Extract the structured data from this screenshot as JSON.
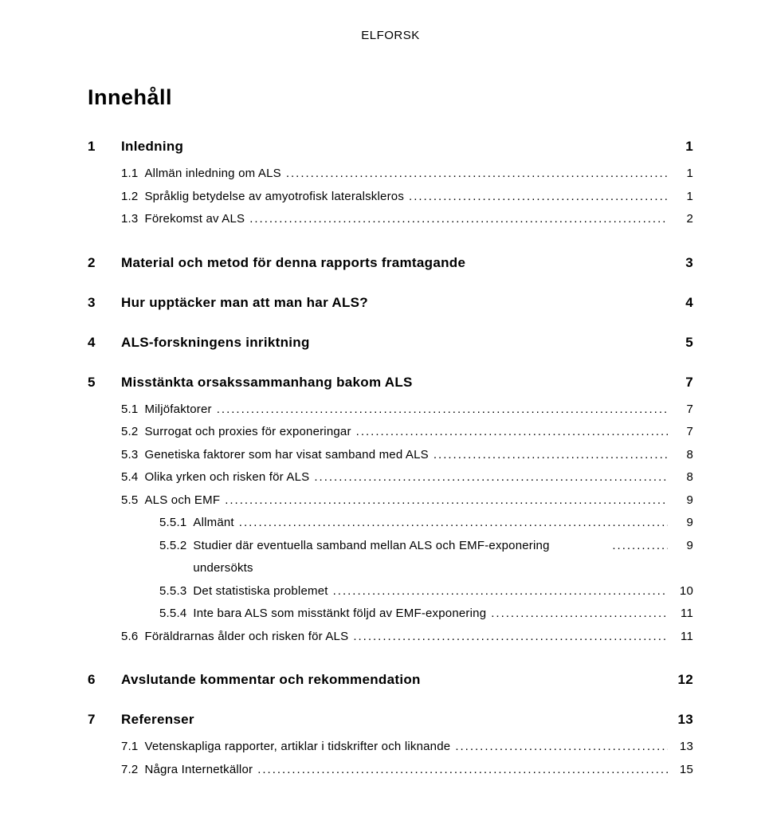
{
  "running_head": "ELFORSK",
  "title": "Innehåll",
  "chapters": [
    {
      "num": "1",
      "title": "Inledning",
      "page": "1",
      "entries": [
        {
          "level": 1,
          "num": "1.1",
          "title": "Allmän inledning om ALS",
          "page": "1"
        },
        {
          "level": 1,
          "num": "1.2",
          "title": "Språklig betydelse av amyotrofisk lateralskleros",
          "page": "1"
        },
        {
          "level": 1,
          "num": "1.3",
          "title": "Förekomst av ALS",
          "page": "2"
        }
      ]
    },
    {
      "num": "2",
      "title": "Material och metod för denna rapports framtagande",
      "page": "3",
      "entries": []
    },
    {
      "num": "3",
      "title": "Hur upptäcker man att man har ALS?",
      "page": "4",
      "entries": []
    },
    {
      "num": "4",
      "title": "ALS-forskningens inriktning",
      "page": "5",
      "entries": []
    },
    {
      "num": "5",
      "title": "Misstänkta orsakssammanhang bakom ALS",
      "page": "7",
      "entries": [
        {
          "level": 1,
          "num": "5.1",
          "title": "Miljöfaktorer",
          "page": "7"
        },
        {
          "level": 1,
          "num": "5.2",
          "title": "Surrogat och proxies för exponeringar",
          "page": "7"
        },
        {
          "level": 1,
          "num": "5.3",
          "title": "Genetiska faktorer som har visat samband med ALS",
          "page": "8"
        },
        {
          "level": 1,
          "num": "5.4",
          "title": "Olika yrken och risken för ALS",
          "page": "8"
        },
        {
          "level": 1,
          "num": "5.5",
          "title": "ALS och EMF",
          "page": "9"
        },
        {
          "level": 2,
          "num": "5.5.1",
          "title": "Allmänt",
          "page": "9"
        },
        {
          "level": 2,
          "num": "5.5.2",
          "title": "Studier där eventuella samband mellan ALS och EMF-exponering undersökts",
          "page": "9",
          "wrap": true
        },
        {
          "level": 2,
          "num": "5.5.3",
          "title": "Det statistiska problemet",
          "page": "10"
        },
        {
          "level": 2,
          "num": "5.5.4",
          "title": "Inte bara ALS som misstänkt följd av EMF-exponering",
          "page": "11"
        },
        {
          "level": 1,
          "num": "5.6",
          "title": "Föräldrarnas ålder och risken för ALS",
          "page": "11"
        }
      ]
    },
    {
      "num": "6",
      "title": "Avslutande kommentar och rekommendation",
      "page": "12",
      "entries": []
    },
    {
      "num": "7",
      "title": "Referenser",
      "page": "13",
      "entries": [
        {
          "level": 1,
          "num": "7.1",
          "title": "Vetenskapliga rapporter, artiklar i tidskrifter och liknande",
          "page": "13"
        },
        {
          "level": 1,
          "num": "7.2",
          "title": "Några Internetkällor",
          "page": "15"
        }
      ]
    }
  ]
}
